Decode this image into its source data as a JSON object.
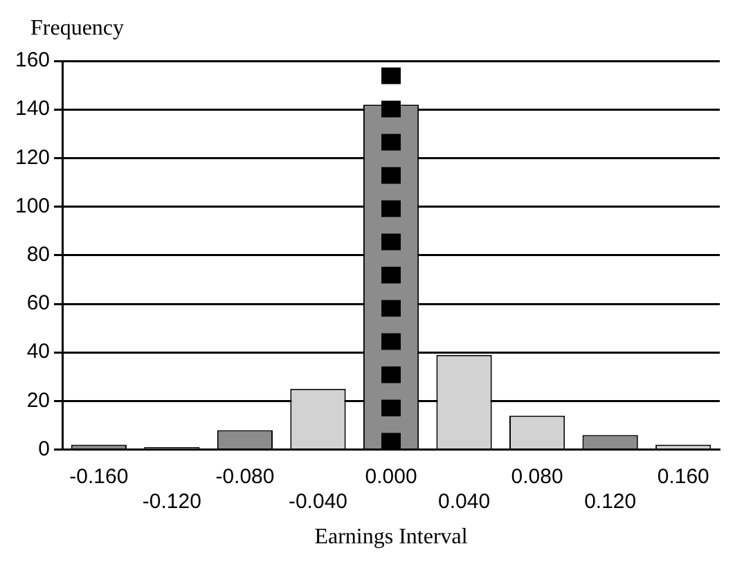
{
  "chart_data": {
    "type": "bar",
    "xlabel": "Earnings Interval",
    "ylabel": "Frequency",
    "categories": [
      "-0.160",
      "-0.120",
      "-0.080",
      "-0.040",
      "0.000",
      "0.040",
      "0.080",
      "0.120",
      "0.160"
    ],
    "values": [
      2,
      1,
      8,
      25,
      142,
      39,
      14,
      6,
      2
    ],
    "colors": [
      "#8c8c8c",
      "#8c8c8c",
      "#8c8c8c",
      "#d2d2d2",
      "#8c8c8c",
      "#d2d2d2",
      "#d2d2d2",
      "#8c8c8c",
      "#d2d2d2"
    ],
    "ylim": [
      0,
      160
    ],
    "yticks": [
      0,
      20,
      40,
      60,
      80,
      100,
      120,
      140,
      160
    ],
    "grid": "y",
    "legend": false,
    "ref_lines": [
      {
        "axis": "x",
        "value": "0.000",
        "color": "#000000",
        "line_style": "dashed"
      }
    ]
  }
}
